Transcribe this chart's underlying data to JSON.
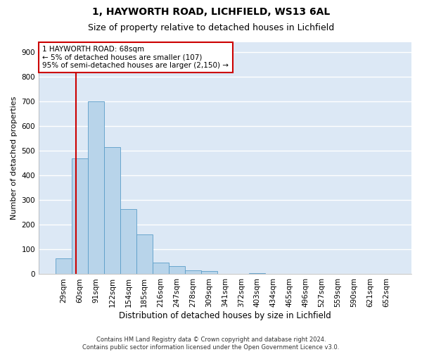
{
  "title_line1": "1, HAYWORTH ROAD, LICHFIELD, WS13 6AL",
  "title_line2": "Size of property relative to detached houses in Lichfield",
  "xlabel": "Distribution of detached houses by size in Lichfield",
  "ylabel": "Number of detached properties",
  "bar_color": "#b8d4ea",
  "bar_edge_color": "#5a9dc8",
  "background_color": "#dce8f5",
  "grid_color": "#ffffff",
  "annotation_line1": "1 HAYWORTH ROAD: 68sqm",
  "annotation_line2": "← 5% of detached houses are smaller (107)",
  "annotation_line3": "95% of semi-detached houses are larger (2,150) →",
  "property_line_color": "#cc0000",
  "annotation_box_color": "#ffffff",
  "annotation_box_edge": "#cc0000",
  "categories": [
    "29sqm",
    "60sqm",
    "91sqm",
    "122sqm",
    "154sqm",
    "185sqm",
    "216sqm",
    "247sqm",
    "278sqm",
    "309sqm",
    "341sqm",
    "372sqm",
    "403sqm",
    "434sqm",
    "465sqm",
    "496sqm",
    "527sqm",
    "559sqm",
    "590sqm",
    "621sqm",
    "652sqm"
  ],
  "values": [
    65,
    470,
    700,
    515,
    265,
    160,
    47,
    33,
    16,
    13,
    0,
    0,
    5,
    0,
    0,
    0,
    0,
    0,
    0,
    0,
    0
  ],
  "ylim": [
    0,
    940
  ],
  "yticks": [
    0,
    100,
    200,
    300,
    400,
    500,
    600,
    700,
    800,
    900
  ],
  "footnote_line1": "Contains HM Land Registry data © Crown copyright and database right 2024.",
  "footnote_line2": "Contains public sector information licensed under the Open Government Licence v3.0.",
  "title1_fontsize": 10,
  "title2_fontsize": 9,
  "tick_fontsize": 7.5,
  "ylabel_fontsize": 8,
  "xlabel_fontsize": 8.5,
  "annot_fontsize": 7.5,
  "footnote_fontsize": 6
}
